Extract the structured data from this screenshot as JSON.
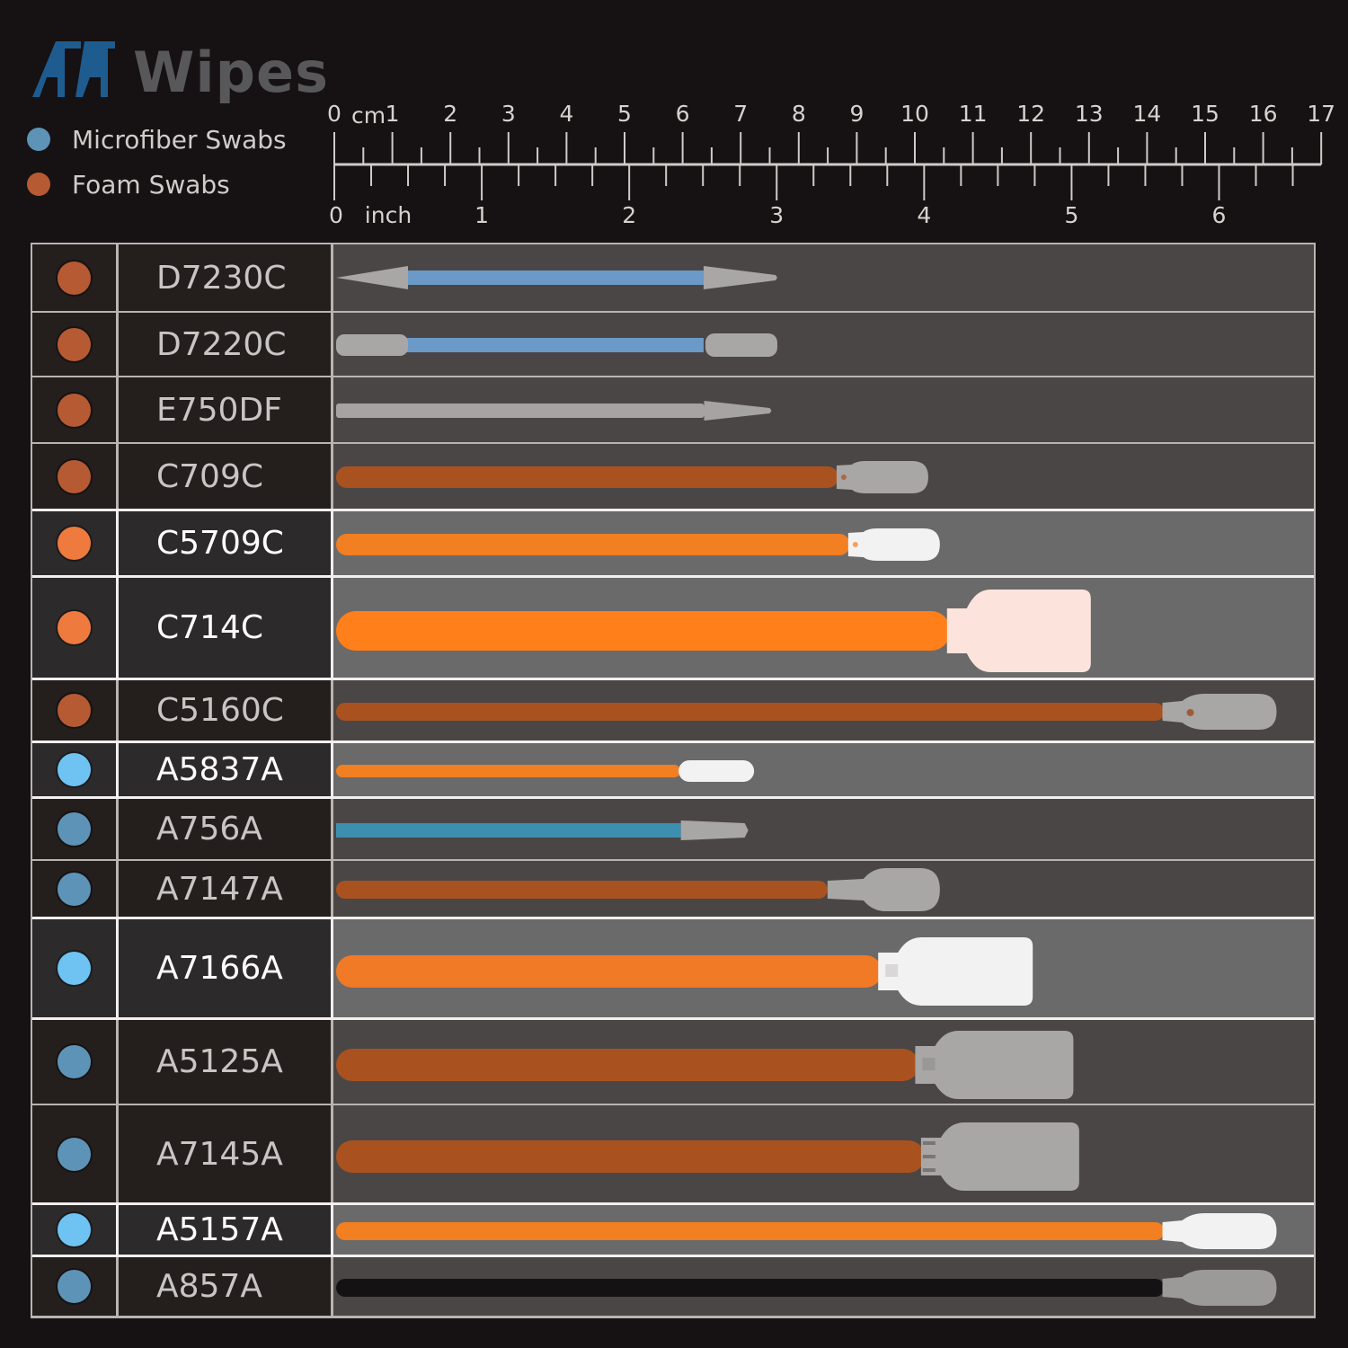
{
  "brand": {
    "logo_mark": "AA",
    "logo_text": "Wipes",
    "mark_color": "#1e5c8f",
    "text_color": "#58575a"
  },
  "legend": [
    {
      "label": "Microfiber Swabs",
      "color": "#5d93b6"
    },
    {
      "label": "Foam Swabs",
      "color": "#b65a33"
    }
  ],
  "ruler": {
    "cm_unit_label": "cm",
    "cm_ticks": [
      "0",
      "1",
      "2",
      "3",
      "4",
      "5",
      "6",
      "7",
      "8",
      "9",
      "10",
      "11",
      "12",
      "13",
      "14",
      "15",
      "16",
      "17"
    ],
    "inch_unit_label": "inch",
    "inch_ticks": [
      "0",
      "1",
      "2",
      "3",
      "4",
      "5",
      "6"
    ]
  },
  "swabs": [
    {
      "model": "D7230C",
      "type": "Foam Swabs",
      "dot_color": "#b65a33",
      "highlight": false,
      "shape": "double-pointed",
      "handle_color": "#6b9ac9",
      "tip_color": "#a9a6a6",
      "length_cm": 7.6
    },
    {
      "model": "D7220C",
      "type": "Foam Swabs",
      "dot_color": "#b65a33",
      "highlight": false,
      "shape": "double-rounded",
      "handle_color": "#6b9ac9",
      "tip_color": "#a9a6a6",
      "length_cm": 7.6
    },
    {
      "model": "E750DF",
      "type": "Foam Swabs",
      "dot_color": "#b65a33",
      "highlight": false,
      "shape": "pointed",
      "handle_color": "#a6a3a3",
      "tip_color": "#a6a3a3",
      "length_cm": 7.5
    },
    {
      "model": "C709C",
      "type": "Foam Swabs",
      "dot_color": "#b65a33",
      "highlight": false,
      "shape": "paddle-small",
      "handle_color": "#a9521f",
      "tip_color": "#a9a6a6",
      "length_cm": 10.2
    },
    {
      "model": "C5709C",
      "type": "Foam Swabs",
      "dot_color": "#ee7a3e",
      "highlight": true,
      "shape": "paddle-small",
      "handle_color": "#f27f22",
      "tip_color": "#f3f2f2",
      "length_cm": 10.4
    },
    {
      "model": "C714C",
      "type": "Foam Swabs",
      "dot_color": "#ee7a3e",
      "highlight": true,
      "shape": "rect-large",
      "handle_color": "#ff7f1a",
      "tip_color": "#fce4dd",
      "length_cm": 13.0
    },
    {
      "model": "C5160C",
      "type": "Foam Swabs",
      "dot_color": "#b65a33",
      "highlight": false,
      "shape": "paddle-long",
      "handle_color": "#a9521f",
      "tip_color": "#a9a6a6",
      "length_cm": 16.2
    },
    {
      "model": "A5837A",
      "type": "Microfiber Swabs",
      "dot_color": "#6ec3f2",
      "highlight": true,
      "shape": "paddle-thin",
      "handle_color": "#f27f22",
      "tip_color": "#f3f2f2",
      "length_cm": 7.2
    },
    {
      "model": "A756A",
      "type": "Microfiber Swabs",
      "dot_color": "#5d93b6",
      "highlight": false,
      "shape": "tapered",
      "handle_color": "#3d8fb0",
      "tip_color": "#a9a6a6",
      "length_cm": 7.1
    },
    {
      "model": "A7147A",
      "type": "Microfiber Swabs",
      "dot_color": "#5d93b6",
      "highlight": false,
      "shape": "paddle-mid",
      "handle_color": "#a9521f",
      "tip_color": "#a9a6a6",
      "length_cm": 10.4
    },
    {
      "model": "A7166A",
      "type": "Microfiber Swabs",
      "dot_color": "#6ec3f2",
      "highlight": true,
      "shape": "rect-large",
      "handle_color": "#f07a26",
      "tip_color": "#f3f2f2",
      "length_cm": 12.0
    },
    {
      "model": "A5125A",
      "type": "Microfiber Swabs",
      "dot_color": "#5d93b6",
      "highlight": false,
      "shape": "rect-large",
      "handle_color": "#a9521f",
      "tip_color": "#a9a6a6",
      "length_cm": 12.7
    },
    {
      "model": "A7145A",
      "type": "Microfiber Swabs",
      "dot_color": "#5d93b6",
      "highlight": false,
      "shape": "rect-large-slotted",
      "handle_color": "#a9521f",
      "tip_color": "#a9a6a6",
      "length_cm": 12.8
    },
    {
      "model": "A5157A",
      "type": "Microfiber Swabs",
      "dot_color": "#6ec3f2",
      "highlight": true,
      "shape": "paddle-long",
      "handle_color": "#f27f22",
      "tip_color": "#f3f2f2",
      "length_cm": 16.2
    },
    {
      "model": "A857A",
      "type": "Microfiber Swabs",
      "dot_color": "#5d93b6",
      "highlight": false,
      "shape": "paddle-long",
      "handle_color": "#141212",
      "tip_color": "#9c9999",
      "length_cm": 16.2
    }
  ]
}
